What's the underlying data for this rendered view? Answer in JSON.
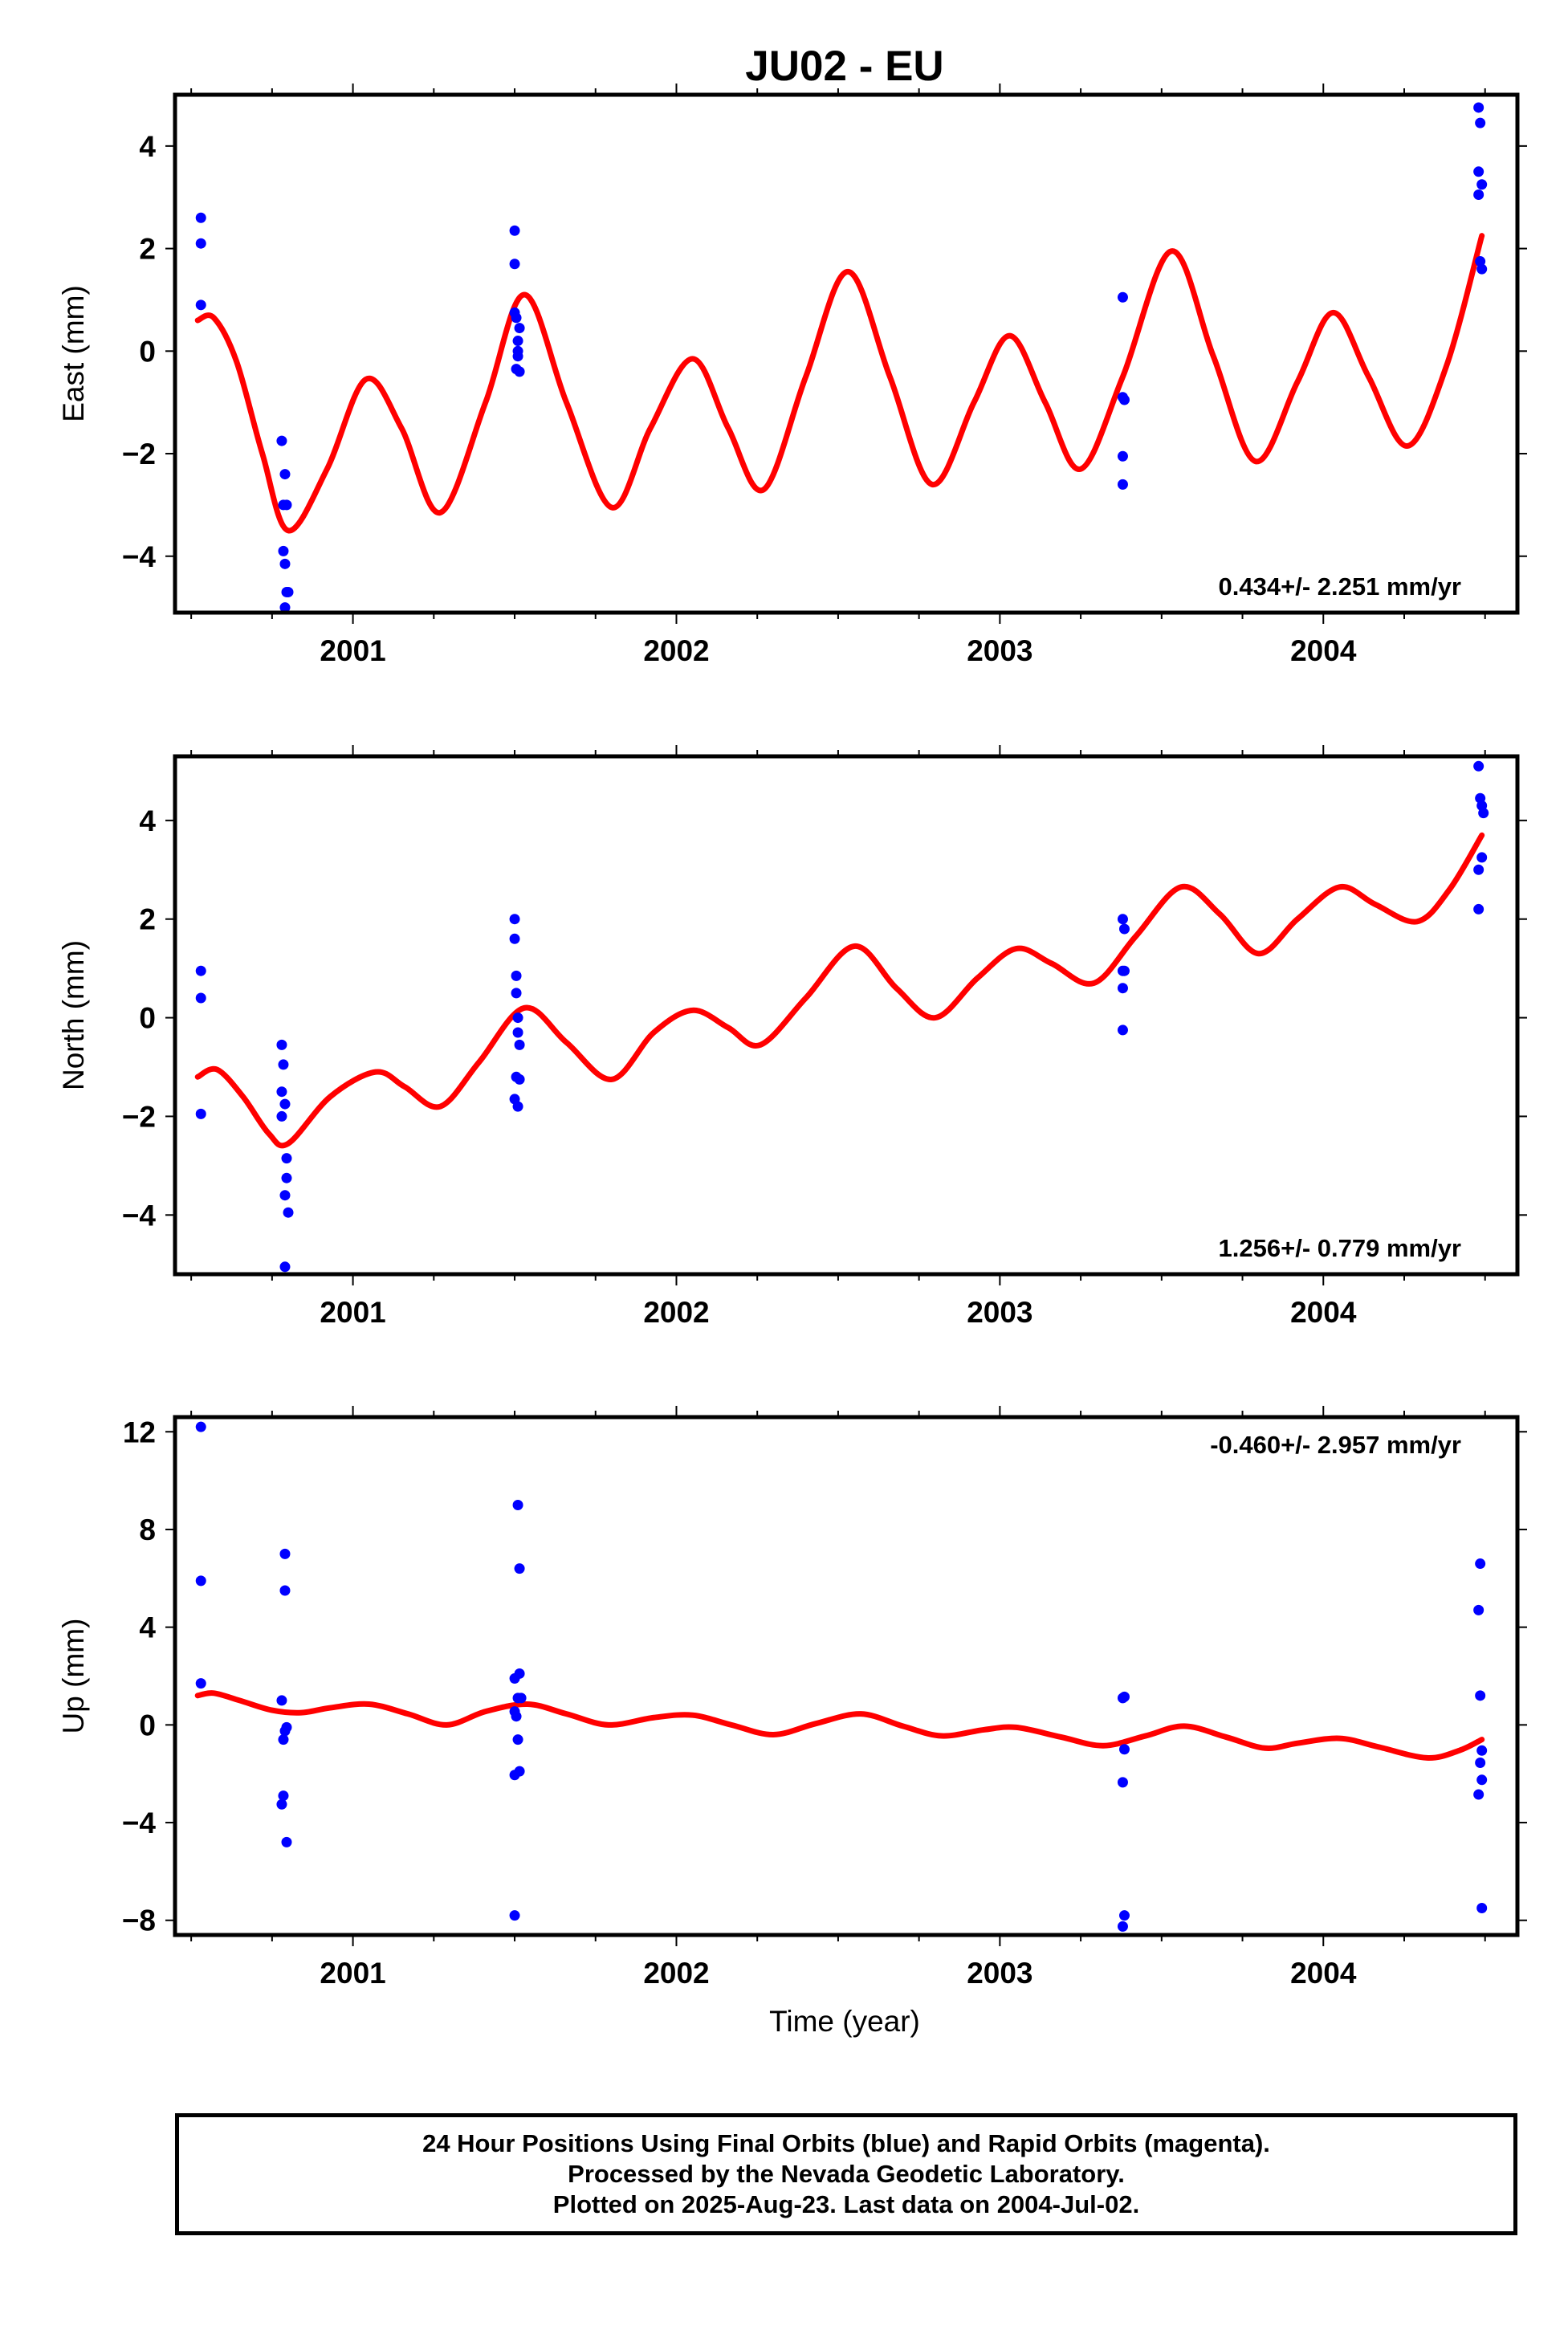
{
  "colors": {
    "data": "#0000ff",
    "model": "#ff0000",
    "frame": "#000000"
  },
  "title": "JU02 - EU",
  "xlabel": "Time (year)",
  "caption": [
    "24 Hour Positions Using Final Orbits (blue) and Rapid Orbits (magenta).",
    "Processed by the Nevada Geodetic Laboratory.",
    "Plotted on 2025-Aug-23. Last data on 2004-Jul-02."
  ],
  "chart_data": [
    {
      "type": "scatter",
      "component": "east",
      "ylabel": "East (mm)",
      "rate_text": "0.434+/- 2.251 mm/yr",
      "xlim": [
        2000.45,
        2004.6
      ],
      "ylim": [
        -5.1,
        5.0
      ],
      "xticks": [
        2001,
        2002,
        2003,
        2004
      ],
      "yticks": [
        -4,
        -2,
        0,
        2,
        4
      ],
      "ytick_labels": [
        "−4",
        "−2",
        "0",
        "2",
        "4"
      ],
      "points": [
        [
          2000.53,
          2.6
        ],
        [
          2000.53,
          2.1
        ],
        [
          2000.53,
          0.9
        ],
        [
          2000.78,
          -1.75
        ],
        [
          2000.79,
          -2.4
        ],
        [
          2000.785,
          -3.0
        ],
        [
          2000.795,
          -3.0
        ],
        [
          2000.785,
          -3.9
        ],
        [
          2000.79,
          -4.15
        ],
        [
          2000.795,
          -4.7
        ],
        [
          2000.8,
          -4.7
        ],
        [
          2000.79,
          -5.0
        ],
        [
          2001.5,
          2.35
        ],
        [
          2001.5,
          1.7
        ],
        [
          2001.5,
          0.75
        ],
        [
          2001.505,
          0.65
        ],
        [
          2001.51,
          0.2
        ],
        [
          2001.515,
          0.45
        ],
        [
          2001.51,
          0.0
        ],
        [
          2001.505,
          -0.35
        ],
        [
          2001.515,
          -0.4
        ],
        [
          2001.51,
          -0.1
        ],
        [
          2003.38,
          1.05
        ],
        [
          2003.385,
          -0.95
        ],
        [
          2003.38,
          -0.9
        ],
        [
          2003.38,
          -2.05
        ],
        [
          2003.38,
          -2.6
        ],
        [
          2004.48,
          4.75
        ],
        [
          2004.485,
          4.45
        ],
        [
          2004.48,
          3.5
        ],
        [
          2004.49,
          3.25
        ],
        [
          2004.48,
          3.05
        ],
        [
          2004.485,
          1.75
        ],
        [
          2004.49,
          1.6
        ]
      ],
      "model": [
        [
          2000.52,
          0.6
        ],
        [
          2000.57,
          0.65
        ],
        [
          2000.64,
          -0.2
        ],
        [
          2000.72,
          -2.0
        ],
        [
          2000.8,
          -3.5
        ],
        [
          2000.92,
          -2.3
        ],
        [
          2001.04,
          -0.55
        ],
        [
          2001.15,
          -1.5
        ],
        [
          2001.27,
          -3.15
        ],
        [
          2001.41,
          -1.0
        ],
        [
          2001.53,
          1.1
        ],
        [
          2001.66,
          -1.0
        ],
        [
          2001.8,
          -3.05
        ],
        [
          2001.92,
          -1.5
        ],
        [
          2002.05,
          -0.15
        ],
        [
          2002.16,
          -1.5
        ],
        [
          2002.27,
          -2.7
        ],
        [
          2002.4,
          -0.5
        ],
        [
          2002.53,
          1.55
        ],
        [
          2002.66,
          -0.5
        ],
        [
          2002.79,
          -2.6
        ],
        [
          2002.92,
          -1.0
        ],
        [
          2003.03,
          0.3
        ],
        [
          2003.14,
          -1.0
        ],
        [
          2003.25,
          -2.3
        ],
        [
          2003.38,
          -0.5
        ],
        [
          2003.53,
          1.95
        ],
        [
          2003.66,
          -0.1
        ],
        [
          2003.79,
          -2.15
        ],
        [
          2003.92,
          -0.6
        ],
        [
          2004.03,
          0.75
        ],
        [
          2004.14,
          -0.5
        ],
        [
          2004.26,
          -1.85
        ],
        [
          2004.38,
          -0.3
        ],
        [
          2004.49,
          2.25
        ]
      ]
    },
    {
      "type": "scatter",
      "component": "north",
      "ylabel": "North (mm)",
      "rate_text": "1.256+/- 0.779 mm/yr",
      "xlim": [
        2000.45,
        2004.6
      ],
      "ylim": [
        -5.2,
        5.3
      ],
      "xticks": [
        2001,
        2002,
        2003,
        2004
      ],
      "yticks": [
        -4,
        -2,
        0,
        2,
        4
      ],
      "ytick_labels": [
        "−4",
        "−2",
        "0",
        "2",
        "4"
      ],
      "points": [
        [
          2000.53,
          0.95
        ],
        [
          2000.53,
          0.4
        ],
        [
          2000.53,
          -1.95
        ],
        [
          2000.78,
          -0.55
        ],
        [
          2000.785,
          -0.95
        ],
        [
          2000.78,
          -1.5
        ],
        [
          2000.79,
          -1.75
        ],
        [
          2000.78,
          -2.0
        ],
        [
          2000.795,
          -2.85
        ],
        [
          2000.795,
          -3.25
        ],
        [
          2000.79,
          -3.6
        ],
        [
          2000.8,
          -3.95
        ],
        [
          2000.79,
          -5.05
        ],
        [
          2001.5,
          2.0
        ],
        [
          2001.5,
          1.6
        ],
        [
          2001.505,
          0.85
        ],
        [
          2001.505,
          0.5
        ],
        [
          2001.51,
          0.0
        ],
        [
          2001.51,
          -0.3
        ],
        [
          2001.515,
          -0.55
        ],
        [
          2001.505,
          -1.2
        ],
        [
          2001.515,
          -1.25
        ],
        [
          2001.5,
          -1.65
        ],
        [
          2001.51,
          -1.8
        ],
        [
          2003.38,
          2.0
        ],
        [
          2003.385,
          1.8
        ],
        [
          2003.38,
          0.95
        ],
        [
          2003.385,
          0.95
        ],
        [
          2003.38,
          0.6
        ],
        [
          2003.38,
          -0.25
        ],
        [
          2004.48,
          5.1
        ],
        [
          2004.485,
          4.45
        ],
        [
          2004.49,
          4.3
        ],
        [
          2004.495,
          4.15
        ],
        [
          2004.49,
          3.25
        ],
        [
          2004.48,
          3.0
        ],
        [
          2004.48,
          2.2
        ]
      ],
      "model": [
        [
          2000.52,
          -1.2
        ],
        [
          2000.58,
          -1.05
        ],
        [
          2000.66,
          -1.6
        ],
        [
          2000.74,
          -2.35
        ],
        [
          2000.8,
          -2.55
        ],
        [
          2000.93,
          -1.6
        ],
        [
          2001.07,
          -1.1
        ],
        [
          2001.16,
          -1.4
        ],
        [
          2001.27,
          -1.8
        ],
        [
          2001.39,
          -0.9
        ],
        [
          2001.53,
          0.2
        ],
        [
          2001.66,
          -0.5
        ],
        [
          2001.8,
          -1.25
        ],
        [
          2001.93,
          -0.3
        ],
        [
          2002.05,
          0.15
        ],
        [
          2002.16,
          -0.2
        ],
        [
          2002.26,
          -0.55
        ],
        [
          2002.4,
          0.4
        ],
        [
          2002.55,
          1.45
        ],
        [
          2002.68,
          0.6
        ],
        [
          2002.8,
          0.0
        ],
        [
          2002.93,
          0.8
        ],
        [
          2003.05,
          1.4
        ],
        [
          2003.16,
          1.1
        ],
        [
          2003.29,
          0.7
        ],
        [
          2003.42,
          1.65
        ],
        [
          2003.56,
          2.65
        ],
        [
          2003.68,
          2.1
        ],
        [
          2003.8,
          1.3
        ],
        [
          2003.92,
          2.0
        ],
        [
          2004.05,
          2.65
        ],
        [
          2004.16,
          2.3
        ],
        [
          2004.29,
          1.95
        ],
        [
          2004.39,
          2.6
        ],
        [
          2004.49,
          3.7
        ]
      ]
    },
    {
      "type": "scatter",
      "component": "up",
      "ylabel": "Up (mm)",
      "rate_text": "-0.460+/- 2.957 mm/yr",
      "xlim": [
        2000.45,
        2004.6
      ],
      "ylim": [
        -8.6,
        12.6
      ],
      "xticks": [
        2001,
        2002,
        2003,
        2004
      ],
      "yticks": [
        -8,
        -4,
        0,
        4,
        8,
        12
      ],
      "ytick_labels": [
        "−8",
        "−4",
        "0",
        "4",
        "8",
        "12"
      ],
      "points": [
        [
          2000.53,
          12.2
        ],
        [
          2000.53,
          5.9
        ],
        [
          2000.53,
          1.7
        ],
        [
          2000.79,
          7.0
        ],
        [
          2000.79,
          5.5
        ],
        [
          2000.78,
          1.0
        ],
        [
          2000.795,
          -0.1
        ],
        [
          2000.79,
          -0.25
        ],
        [
          2000.785,
          -0.6
        ],
        [
          2000.785,
          -2.9
        ],
        [
          2000.78,
          -3.25
        ],
        [
          2000.795,
          -4.8
        ],
        [
          2001.51,
          9.0
        ],
        [
          2001.515,
          6.4
        ],
        [
          2001.5,
          1.9
        ],
        [
          2001.515,
          2.1
        ],
        [
          2001.51,
          1.1
        ],
        [
          2001.52,
          1.1
        ],
        [
          2001.5,
          0.55
        ],
        [
          2001.505,
          0.35
        ],
        [
          2001.51,
          -0.6
        ],
        [
          2001.515,
          -1.9
        ],
        [
          2001.5,
          -2.05
        ],
        [
          2001.5,
          -7.8
        ],
        [
          2003.38,
          1.1
        ],
        [
          2003.385,
          1.15
        ],
        [
          2003.385,
          -1.0
        ],
        [
          2003.38,
          -2.35
        ],
        [
          2003.385,
          -7.8
        ],
        [
          2003.38,
          -8.25
        ],
        [
          2004.485,
          6.6
        ],
        [
          2004.48,
          4.7
        ],
        [
          2004.485,
          1.2
        ],
        [
          2004.49,
          -1.05
        ],
        [
          2004.485,
          -1.55
        ],
        [
          2004.49,
          -2.25
        ],
        [
          2004.48,
          -2.85
        ],
        [
          2004.49,
          -7.5
        ]
      ],
      "model": [
        [
          2000.52,
          1.2
        ],
        [
          2000.57,
          1.3
        ],
        [
          2000.65,
          1.0
        ],
        [
          2000.75,
          0.6
        ],
        [
          2000.84,
          0.5
        ],
        [
          2000.93,
          0.7
        ],
        [
          2001.05,
          0.85
        ],
        [
          2001.17,
          0.45
        ],
        [
          2001.29,
          0.0
        ],
        [
          2001.41,
          0.55
        ],
        [
          2001.54,
          0.85
        ],
        [
          2001.66,
          0.45
        ],
        [
          2001.79,
          0.0
        ],
        [
          2001.93,
          0.3
        ],
        [
          2002.05,
          0.4
        ],
        [
          2002.17,
          0.0
        ],
        [
          2002.3,
          -0.4
        ],
        [
          2002.43,
          0.05
        ],
        [
          2002.57,
          0.45
        ],
        [
          2002.7,
          -0.05
        ],
        [
          2002.82,
          -0.45
        ],
        [
          2002.95,
          -0.2
        ],
        [
          2003.05,
          -0.1
        ],
        [
          2003.19,
          -0.5
        ],
        [
          2003.32,
          -0.85
        ],
        [
          2003.45,
          -0.45
        ],
        [
          2003.57,
          -0.05
        ],
        [
          2003.7,
          -0.5
        ],
        [
          2003.82,
          -0.95
        ],
        [
          2003.92,
          -0.75
        ],
        [
          2004.05,
          -0.55
        ],
        [
          2004.17,
          -0.9
        ],
        [
          2004.32,
          -1.35
        ],
        [
          2004.42,
          -1.05
        ],
        [
          2004.49,
          -0.6
        ]
      ]
    }
  ]
}
